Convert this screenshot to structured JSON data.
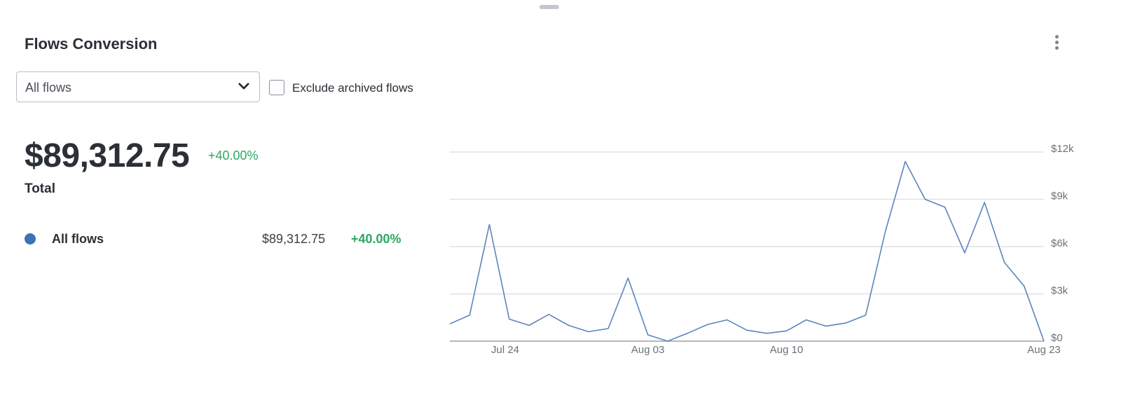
{
  "header": {
    "title": "Flows Conversion"
  },
  "filters": {
    "select": "All flows",
    "checkbox_label": "Exclude archived flows"
  },
  "summary": {
    "total": "$89,312.75",
    "change": "+40.00%",
    "label": "Total"
  },
  "legend_rows": [
    {
      "value": "$89,312.75",
      "change": "+40.00%"
    }
  ],
  "chart_data": {
    "type": "line",
    "categories": [
      "Jul 24",
      null,
      null,
      null,
      null,
      null,
      null,
      null,
      null,
      null,
      "Aug 03",
      null,
      null,
      null,
      null,
      null,
      null,
      "Aug 10",
      null,
      null,
      null,
      null,
      null,
      null,
      null,
      null,
      null,
      null,
      null,
      null,
      "Aug 23"
    ],
    "series": [
      {
        "name": "All flows",
        "color": "#5a86bb",
        "values": [
          1100,
          1650,
          7400,
          1400,
          1000,
          1700,
          1000,
          600,
          800,
          4000,
          400,
          0,
          500,
          1050,
          1350,
          700,
          500,
          650,
          1350,
          950,
          1150,
          1650,
          7000,
          11400,
          9000,
          8500,
          5600,
          8800,
          5000,
          3500,
          0
        ]
      }
    ],
    "ylim": [
      0,
      12000
    ],
    "yticks": [
      {
        "value": 0,
        "label": "$0"
      },
      {
        "value": 3000,
        "label": "$3k"
      },
      {
        "value": 6000,
        "label": "$6k"
      },
      {
        "value": 9000,
        "label": "$9k"
      },
      {
        "value": 12000,
        "label": "$12k"
      }
    ],
    "grid": true,
    "legend_color": "#3a73b8"
  }
}
